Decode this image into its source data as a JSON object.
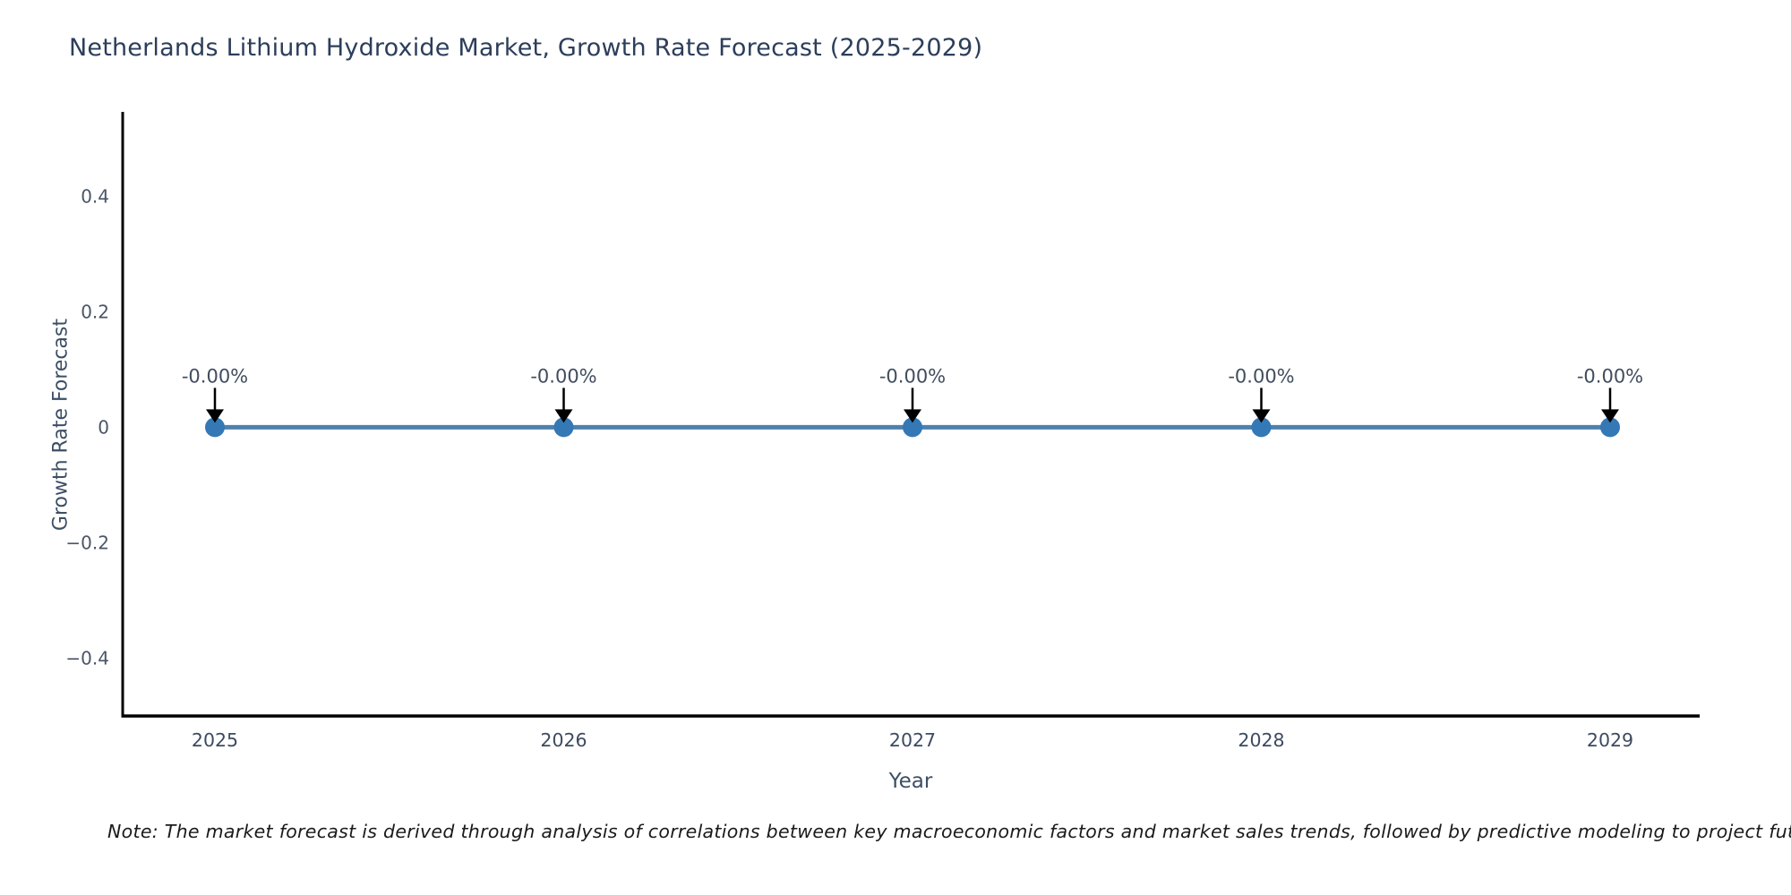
{
  "page": {
    "title": "Netherlands Lithium Hydroxide Market, Growth Rate Forecast (2025-2029)",
    "note": "Note: The market forecast is derived through analysis of correlations between key macroeconomic factors and market sales trends, followed by predictive modeling to project future sales."
  },
  "chart_data": {
    "type": "line",
    "title": "Netherlands Lithium Hydroxide Market, Growth Rate Forecast (2025-2029)",
    "xlabel": "Year",
    "ylabel": "Growth Rate Forecast",
    "categories": [
      "2025",
      "2026",
      "2027",
      "2028",
      "2029"
    ],
    "series": [
      {
        "name": "Growth Rate Forecast",
        "values": [
          0,
          0,
          0,
          0,
          0
        ]
      }
    ],
    "point_labels": [
      "-0.00%",
      "-0.00%",
      "-0.00%",
      "-0.00%",
      "-0.00%"
    ],
    "yticks": [
      {
        "value": 0.4,
        "label": "0.4"
      },
      {
        "value": 0.2,
        "label": "0.2"
      },
      {
        "value": 0,
        "label": "0"
      },
      {
        "value": -0.2,
        "label": "−0.2"
      },
      {
        "value": -0.4,
        "label": "−0.4"
      }
    ],
    "ylim": [
      -0.5,
      0.543
    ],
    "grid": false,
    "legend": false,
    "annotation_arrows": "down",
    "colors": {
      "line": "#4e81ad",
      "marker": "#3478b6",
      "arrow": "#000000",
      "axis": "#000000",
      "title_text": "#2c3e5a",
      "axis_label_text": "#3d4f66",
      "x_tick_text": "#3d4a61",
      "y_tick_text": "#4a5568",
      "annotation_text": "#414d5f",
      "note_text": "#1a1a1a"
    }
  }
}
